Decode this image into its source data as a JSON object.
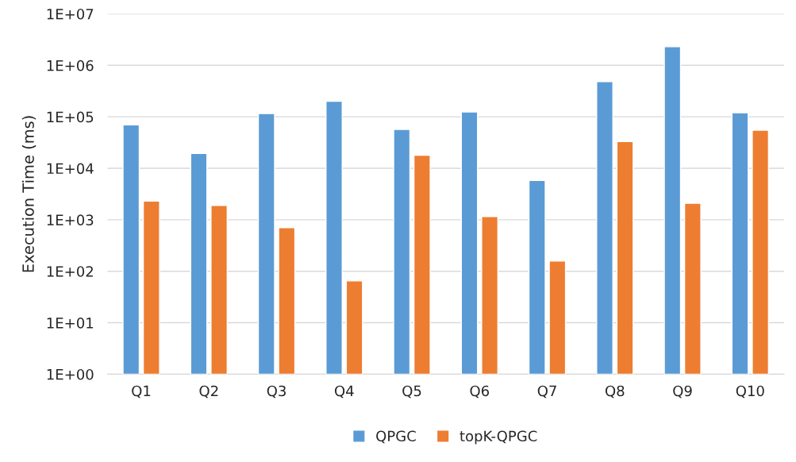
{
  "chart_data": {
    "type": "bar",
    "ylabel": "Execution Time (ms)",
    "categories": [
      "Q1",
      "Q2",
      "Q3",
      "Q4",
      "Q5",
      "Q6",
      "Q7",
      "Q8",
      "Q9",
      "Q10"
    ],
    "series": [
      {
        "name": "QPGC",
        "color": "#5b9bd5",
        "values": [
          70000,
          19500,
          116000,
          200000,
          57000,
          124000,
          5800,
          483000,
          2300000,
          120000
        ]
      },
      {
        "name": "topK-QPGC",
        "color": "#ed7d31",
        "values": [
          2300,
          1900,
          700,
          65,
          18000,
          1160,
          158,
          33000,
          2100,
          55000
        ]
      }
    ],
    "log": "y",
    "ylim": [
      1,
      10000000
    ],
    "yticks": [
      {
        "value": 1,
        "label": "1E+00"
      },
      {
        "value": 10,
        "label": "1E+01"
      },
      {
        "value": 100,
        "label": "1E+02"
      },
      {
        "value": 1000,
        "label": "1E+03"
      },
      {
        "value": 10000,
        "label": "1E+04"
      },
      {
        "value": 100000,
        "label": "1E+05"
      },
      {
        "value": 1000000,
        "label": "1E+06"
      },
      {
        "value": 10000000,
        "label": "1E+07"
      }
    ],
    "grid": "y",
    "legend": "bottom"
  }
}
